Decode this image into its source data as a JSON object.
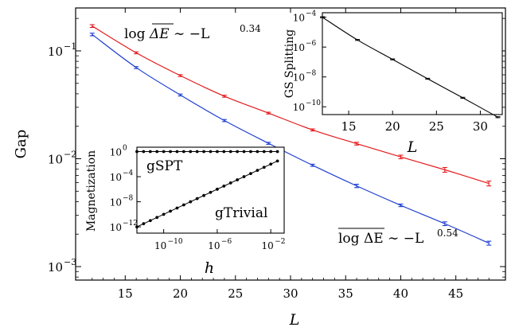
{
  "chart_data": [
    {
      "id": "main",
      "type": "line",
      "xlabel": "L",
      "ylabel": "Gap",
      "xlim": [
        10.5,
        49.5
      ],
      "ylim": [
        0.00075,
        0.25
      ],
      "yscale": "log",
      "xticks": [
        15,
        20,
        25,
        30,
        35,
        40,
        45
      ],
      "xtick_labels": [
        "15",
        "20",
        "25",
        "30",
        "35",
        "40",
        "45"
      ],
      "yticks": [
        0.001,
        0.01,
        0.1
      ],
      "ytick_labels": [
        "10",
        "10",
        "10"
      ],
      "ytick_exponents": [
        "−3",
        "−2",
        "−1"
      ],
      "series": [
        {
          "color": "#e41a1c",
          "x": [
            12,
            16,
            20,
            24,
            28,
            32,
            36,
            40,
            44,
            48
          ],
          "y": [
            0.17,
            0.096,
            0.059,
            0.038,
            0.0265,
            0.0185,
            0.0138,
            0.0104,
            0.0079,
            0.0059
          ],
          "yerr": [
            0.005,
            0.002,
            0.0012,
            0.0008,
            0.0005,
            0.0004,
            0.0004,
            0.0004,
            0.0004,
            0.0003
          ]
        },
        {
          "color": "#1f3fd1",
          "x": [
            12,
            16,
            20,
            24,
            28,
            32,
            36,
            40,
            44,
            48
          ],
          "y": [
            0.142,
            0.07,
            0.039,
            0.0226,
            0.0139,
            0.0087,
            0.0056,
            0.0037,
            0.0025,
            0.00165
          ],
          "yerr": [
            0.004,
            0.0015,
            0.0008,
            0.0005,
            0.0003,
            0.0002,
            0.0002,
            0.0001,
            0.0001,
            7e-05
          ]
        }
      ],
      "annotations": [
        {
          "text_left": "log ",
          "text_over": "ΔE",
          "text_right": " ∼ −L",
          "exponent": "0.34"
        },
        {
          "text_over": "log ΔE",
          "text_right": " ∼ −L",
          "exponent": "0.54"
        }
      ]
    },
    {
      "id": "inset_gs",
      "type": "line",
      "xlabel": "L",
      "ylabel": "GS Splitting",
      "xlim": [
        12,
        32.5
      ],
      "ylim": [
        3e-11,
        0.0002
      ],
      "yscale": "log",
      "xticks": [
        15,
        20,
        25,
        30
      ],
      "xtick_labels": [
        "15",
        "20",
        "25",
        "30"
      ],
      "yticks": [
        1e-10,
        1e-08,
        1e-06,
        0.0001
      ],
      "ytick_labels": [
        "10",
        "10",
        "10",
        "10"
      ],
      "ytick_exponents": [
        "−10",
        "−8",
        "−6",
        "−4"
      ],
      "series": [
        {
          "color": "#000000",
          "x": [
            12,
            16,
            20,
            24,
            28,
            32
          ],
          "y": [
            0.0001,
            3e-06,
            1.5e-07,
            7.5e-09,
            4e-10,
            2e-11
          ],
          "yerr_factor": [
            1.08,
            1.08,
            1.08,
            1.08,
            1.08,
            1.08
          ]
        }
      ]
    },
    {
      "id": "inset_mag",
      "type": "scatter",
      "xlabel": "h",
      "ylabel": "Magnetization",
      "xscale": "log",
      "yscale": "log",
      "xlim": [
        1e-12,
        0.1
      ],
      "ylim": [
        1e-13,
        5
      ],
      "xticks": [
        1e-10,
        1e-06,
        0.01
      ],
      "xtick_labels": [
        "10",
        "10",
        "10"
      ],
      "xtick_exponents": [
        "−10",
        "−6",
        "−2"
      ],
      "yticks": [
        1e-12,
        1e-08,
        0.0001,
        1
      ],
      "ytick_labels": [
        "10",
        "10",
        "10",
        "10"
      ],
      "ytick_exponents": [
        "−12",
        "−8",
        "−4",
        "0"
      ],
      "series": [
        {
          "name": "gSPT",
          "color": "#000000",
          "x": [
            1e-12,
            3.16e-12,
            1e-11,
            3.16e-11,
            1e-10,
            3.16e-10,
            1e-09,
            3.16e-09,
            1e-08,
            3.16e-08,
            1e-07,
            3.16e-07,
            1e-06,
            3.16e-06,
            1e-05,
            3.16e-05,
            0.0001,
            0.000316,
            0.001,
            0.00316,
            0.01,
            0.0316
          ],
          "y": [
            1,
            1,
            1,
            1,
            1,
            1,
            1,
            1,
            1,
            1,
            1,
            1,
            1,
            1,
            1,
            1,
            1,
            1,
            1,
            1,
            1,
            1
          ]
        },
        {
          "name": "gTrivial",
          "color": "#000000",
          "x": [
            1e-12,
            3.16e-12,
            1e-11,
            3.16e-11,
            1e-10,
            3.16e-10,
            1e-09,
            3.16e-09,
            1e-08,
            3.16e-08,
            1e-07,
            3.16e-07,
            1e-06,
            3.16e-06,
            1e-05,
            3.16e-05,
            0.0001,
            0.000316,
            0.001,
            0.00316,
            0.01,
            0.0316
          ],
          "y": [
            1e-12,
            3.16e-12,
            1e-11,
            3.16e-11,
            1e-10,
            3.16e-10,
            1e-09,
            3.16e-09,
            1e-08,
            3.16e-08,
            1e-07,
            3.16e-07,
            1e-06,
            3.16e-06,
            1e-05,
            3.16e-05,
            0.0001,
            0.000316,
            0.001,
            0.00316,
            0.01,
            0.0316
          ]
        }
      ]
    }
  ]
}
